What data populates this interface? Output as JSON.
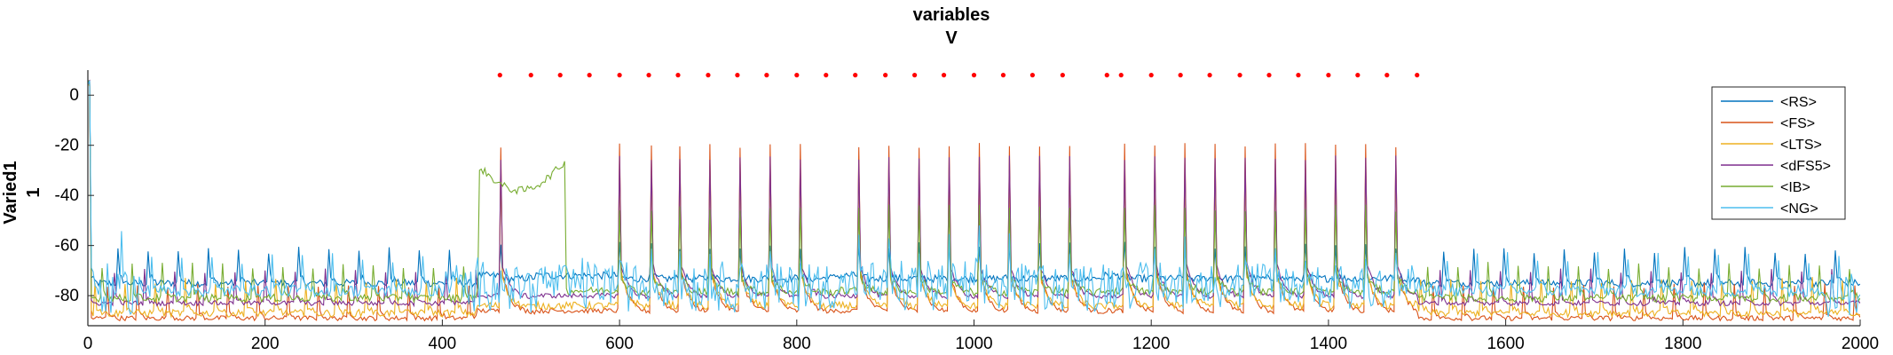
{
  "chart_data": {
    "type": "line",
    "title": [
      "variables",
      "V"
    ],
    "ylabel": [
      "Varied1",
      "1"
    ],
    "xlabel": "",
    "xlim": [
      0,
      2000
    ],
    "ylim": [
      -92,
      10
    ],
    "xticks": [
      0,
      200,
      400,
      600,
      800,
      1000,
      1200,
      1400,
      1600,
      1800,
      2000
    ],
    "yticks": [
      0,
      -20,
      -40,
      -60,
      -80
    ],
    "grid": false,
    "legend_position": "top-right",
    "series": [
      {
        "name": "<RS>",
        "color": "#0072BD",
        "baseline": -72,
        "spike_peak": -60,
        "noise": 3
      },
      {
        "name": "<FS>",
        "color": "#D95319",
        "baseline": -86,
        "spike_peak": -20,
        "noise": 2
      },
      {
        "name": "<LTS>",
        "color": "#EDB120",
        "baseline": -84,
        "spike_peak": -30,
        "noise": 3
      },
      {
        "name": "<dFS5>",
        "color": "#7E2F8E",
        "baseline": -80,
        "spike_peak": -25,
        "noise": 2
      },
      {
        "name": "<IB>",
        "color": "#77AC30",
        "baseline": -78,
        "spike_peak": -45,
        "noise": 3
      },
      {
        "name": "<NG>",
        "color": "#4DBEEE",
        "baseline": -75,
        "spike_peak": -62,
        "noise": 5
      }
    ],
    "events": {
      "color": "#FF0000",
      "y": 8,
      "x": [
        465,
        500,
        533,
        566,
        600,
        633,
        666,
        700,
        733,
        766,
        800,
        833,
        866,
        900,
        933,
        966,
        1000,
        1033,
        1066,
        1100,
        1150,
        1166,
        1200,
        1233,
        1266,
        1300,
        1333,
        1366,
        1400,
        1433,
        1466,
        1500
      ]
    },
    "spike_times": [
      466,
      600,
      636,
      668,
      702,
      735,
      769,
      803,
      870,
      903,
      937,
      971,
      1005,
      1039,
      1073,
      1107,
      1170,
      1204,
      1238,
      1272,
      1306,
      1340,
      1374,
      1408,
      1442,
      1476
    ]
  }
}
